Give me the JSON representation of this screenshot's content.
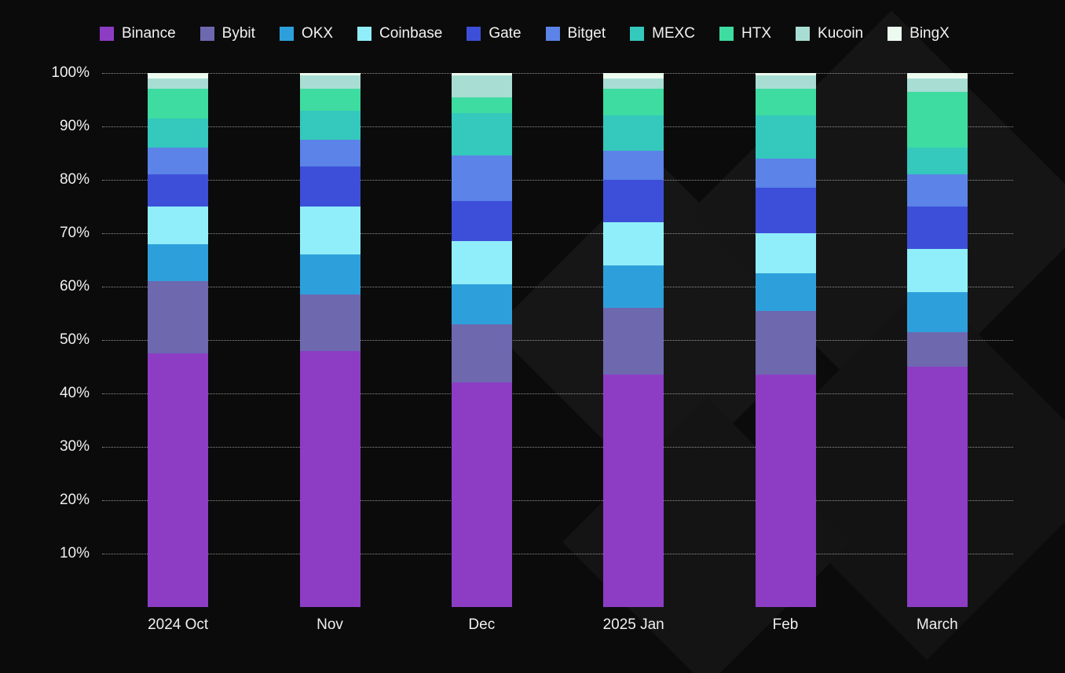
{
  "chart": {
    "background_color": "#0b0b0b",
    "watermark_color": "#151515",
    "text_color": "#f0f0f0",
    "gridline_color": "rgba(255,255,255,0.55)"
  },
  "chart_data": {
    "type": "bar",
    "subtype": "stacked-100-percent",
    "title": "",
    "xlabel": "",
    "ylabel": "",
    "ylim": [
      0,
      100
    ],
    "grid": "horizontal-dotted",
    "legend_position": "top",
    "categories": [
      "2024 Oct",
      "Nov",
      "Dec",
      "2025 Jan",
      "Feb",
      "March"
    ],
    "y_ticks": [
      "10%",
      "20%",
      "30%",
      "40%",
      "50%",
      "60%",
      "70%",
      "80%",
      "90%",
      "100%"
    ],
    "series": [
      {
        "name": "Binance",
        "color": "#8c3dc4",
        "values": [
          47.5,
          48.0,
          42.0,
          43.5,
          43.5,
          45.0
        ]
      },
      {
        "name": "Bybit",
        "color": "#6e68af",
        "values": [
          13.5,
          10.5,
          11.0,
          12.5,
          12.0,
          6.5
        ]
      },
      {
        "name": "OKX",
        "color": "#2da0db",
        "values": [
          7.0,
          7.5,
          7.5,
          8.0,
          7.0,
          7.5
        ]
      },
      {
        "name": "Coinbase",
        "color": "#90eefa",
        "values": [
          7.0,
          9.0,
          8.0,
          8.0,
          7.5,
          8.0
        ]
      },
      {
        "name": "Gate",
        "color": "#3d4fd8",
        "values": [
          6.0,
          7.5,
          7.5,
          8.0,
          8.5,
          8.0
        ]
      },
      {
        "name": "Bitget",
        "color": "#5b83e8",
        "values": [
          5.0,
          5.0,
          8.5,
          5.5,
          5.5,
          6.0
        ]
      },
      {
        "name": "MEXC",
        "color": "#35c8bd",
        "values": [
          5.5,
          5.5,
          8.0,
          6.5,
          8.0,
          5.0
        ]
      },
      {
        "name": "HTX",
        "color": "#3edca0",
        "values": [
          5.5,
          4.0,
          3.0,
          5.0,
          5.0,
          10.5
        ]
      },
      {
        "name": "Kucoin",
        "color": "#a8ddd4",
        "values": [
          2.0,
          2.5,
          4.0,
          2.0,
          2.5,
          2.5
        ]
      },
      {
        "name": "BingX",
        "color": "#edfaef",
        "values": [
          1.0,
          0.5,
          0.5,
          1.0,
          0.5,
          1.0
        ]
      }
    ]
  }
}
